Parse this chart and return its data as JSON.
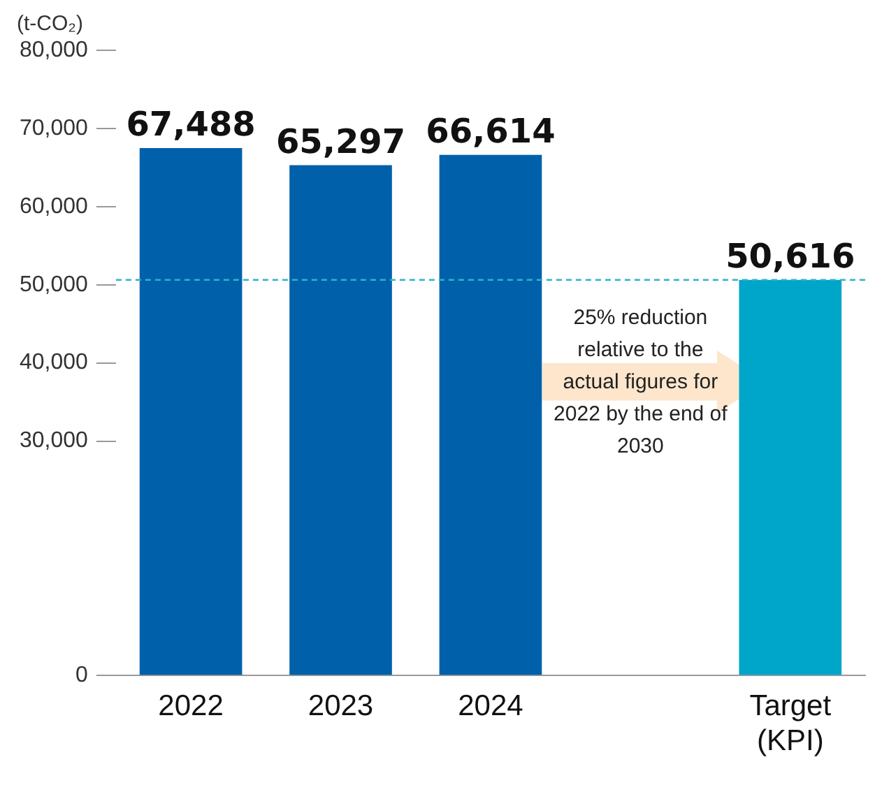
{
  "chart_data": {
    "type": "bar",
    "ylabel": "(t-CO₂)",
    "categories": [
      "2022",
      "2023",
      "2024",
      null,
      "Target (KPI)"
    ],
    "values": [
      67488,
      65297,
      66614,
      null,
      50616
    ],
    "colors": [
      "#0061aa",
      "#0061aa",
      "#0061aa",
      "#0061aa",
      "#00a6c9"
    ],
    "value_labels": [
      "67,488",
      "65,297",
      "66,614",
      null,
      "50,616"
    ],
    "ylim": [
      0,
      80000
    ],
    "yticks": [
      0,
      {
        "value": 30000,
        "label": "30,000"
      },
      {
        "value": 40000,
        "label": "40,000"
      },
      {
        "value": 50000,
        "label": "50,000"
      },
      {
        "value": 60000,
        "label": "60,000"
      },
      {
        "value": 70000,
        "label": "70,000"
      },
      {
        "value": 80000,
        "label": "80,000"
      }
    ],
    "grid": false,
    "ref_lines": [
      {
        "axis": "y",
        "value": 50616,
        "color": "#2fb3c9",
        "line_style": "dashed"
      }
    ],
    "annotations": [
      "25% reduction relative to the actual figures for 2022 by the end of 2030"
    ]
  }
}
